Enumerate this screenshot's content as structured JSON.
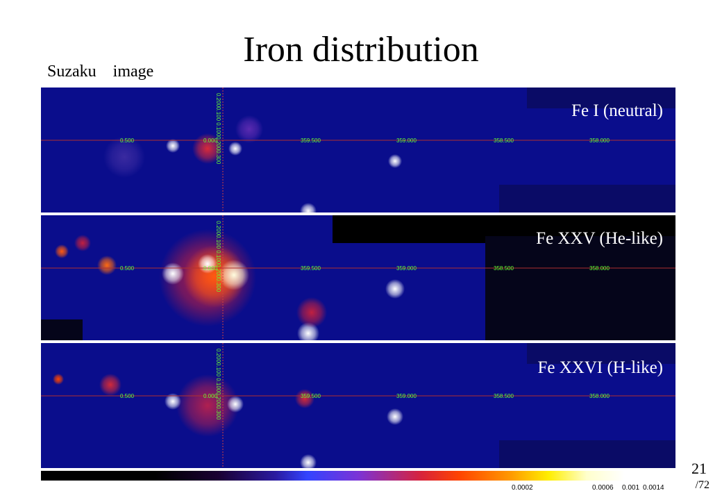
{
  "title": "Iron distribution",
  "subtitle": "Suzaku image",
  "panels": [
    {
      "label": "Fe I (neutral)"
    },
    {
      "label": "Fe XXV (He-like)"
    },
    {
      "label": "Fe XXVI (H-like)"
    }
  ],
  "grid_longitudes": [
    "0.500",
    "0.000",
    "359.500",
    "359.000",
    "358.500",
    "358.000"
  ],
  "grid_latitudes_top": [
    "0.200",
    "0.100"
  ],
  "grid_latitudes_bottom": [
    "0.100",
    "0.200",
    "0.300"
  ],
  "colorbar_ticks": [
    "0.0002",
    "0.0006",
    "0.001",
    "0.0014"
  ],
  "page_number": "21",
  "page_total": "/72",
  "colors": {
    "background": "#0a0d8c",
    "grid_text": "#66ff33",
    "grid_line": "#b03030"
  }
}
